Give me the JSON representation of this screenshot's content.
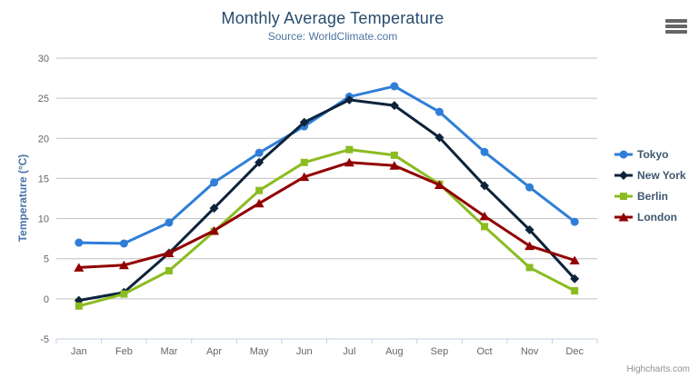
{
  "credits": "Highcharts.com",
  "menu": {
    "icon": "hamburger-icon"
  },
  "chart_data": {
    "type": "line",
    "title": "Monthly Average Temperature",
    "subtitle": "Source: WorldClimate.com",
    "categories": [
      "Jan",
      "Feb",
      "Mar",
      "Apr",
      "May",
      "Jun",
      "Jul",
      "Aug",
      "Sep",
      "Oct",
      "Nov",
      "Dec"
    ],
    "series": [
      {
        "name": "Tokyo",
        "color": "#2f7ed8",
        "marker": "circle",
        "values": [
          7.0,
          6.9,
          9.5,
          14.5,
          18.2,
          21.5,
          25.2,
          26.5,
          23.3,
          18.3,
          13.9,
          9.6
        ]
      },
      {
        "name": "New York",
        "color": "#0d233a",
        "marker": "diamond",
        "values": [
          -0.2,
          0.8,
          5.7,
          11.3,
          17.0,
          22.0,
          24.8,
          24.1,
          20.1,
          14.1,
          8.6,
          2.5
        ]
      },
      {
        "name": "Berlin",
        "color": "#8bbc21",
        "marker": "square",
        "values": [
          -0.9,
          0.6,
          3.5,
          8.4,
          13.5,
          17.0,
          18.6,
          17.9,
          14.3,
          9.0,
          3.9,
          1.0
        ]
      },
      {
        "name": "London",
        "color": "#910000",
        "marker": "triangle",
        "values": [
          3.9,
          4.2,
          5.7,
          8.5,
          11.9,
          15.2,
          17.0,
          16.6,
          14.2,
          10.3,
          6.6,
          4.8
        ]
      }
    ],
    "xlabel": "",
    "ylabel": "Temperature (°C)",
    "ylim": [
      -5,
      30
    ],
    "yticks": [
      -5,
      0,
      5,
      10,
      15,
      20,
      25,
      30
    ],
    "grid": true,
    "legend_position": "right",
    "colors": {
      "title": "#274b6d",
      "subtitle": "#4d759e",
      "axis_title": "#4572a7",
      "tick_label": "#666666",
      "gridline": "#C0C0C0",
      "axis_line": "#C0D0E0",
      "legend_text": "#3E576F"
    }
  }
}
